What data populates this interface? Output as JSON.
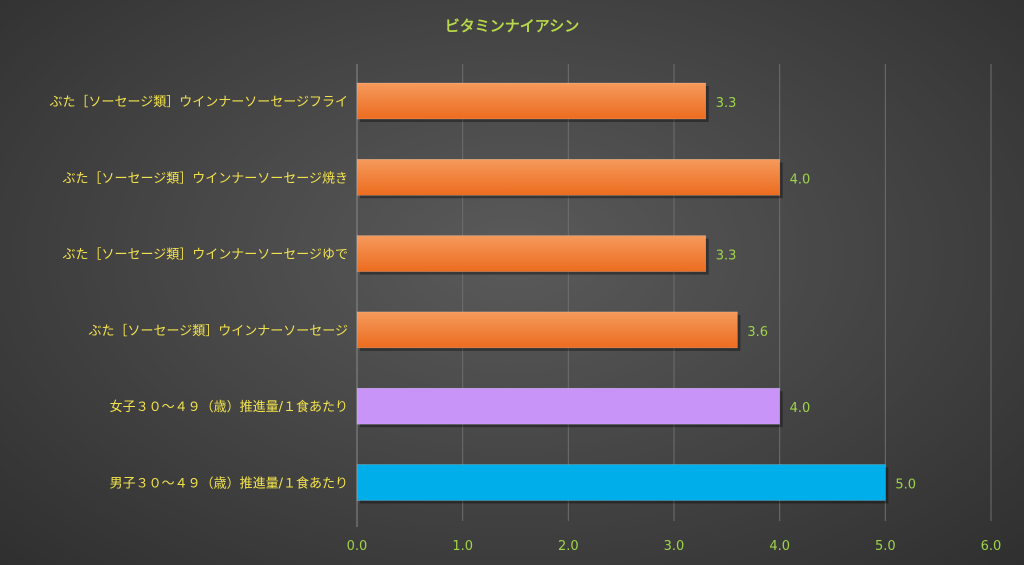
{
  "chart_data": {
    "type": "bar",
    "orientation": "horizontal",
    "title": "ビタミンナイアシン",
    "categories": [
      "ぶた［ソーセージ類］ウインナーソーセージフライ",
      "ぶた［ソーセージ類］ウインナーソーセージ焼き",
      "ぶた［ソーセージ類］ウインナーソーセージゆで",
      "ぶた［ソーセージ類］ウインナーソーセージ",
      "女子３０～４９（歳）推進量/１食あたり",
      "男子３０～４９（歳）推進量/１食あたり"
    ],
    "values": [
      3.3,
      4.0,
      3.3,
      3.6,
      4.0,
      5.0
    ],
    "value_labels": [
      "3.3",
      "4.0",
      "3.3",
      "3.6",
      "4.0",
      "5.0"
    ],
    "bar_colors": [
      "#f07a30",
      "#f07a30",
      "#f07a30",
      "#f07a30",
      "#c994f8",
      "#00aeea"
    ],
    "xlim": [
      0,
      6
    ],
    "x_ticks": [
      0,
      1,
      2,
      3,
      4,
      5,
      6
    ],
    "x_tick_labels": [
      "0.0",
      "1.0",
      "2.0",
      "3.0",
      "4.0",
      "5.0",
      "6.0"
    ],
    "xlabel": "",
    "ylabel": "",
    "grid": true,
    "legend": "none",
    "background": "#474747",
    "title_color": "#b6d84a",
    "category_label_color": "#f2e24d",
    "tick_label_color": "#9ed34a"
  }
}
